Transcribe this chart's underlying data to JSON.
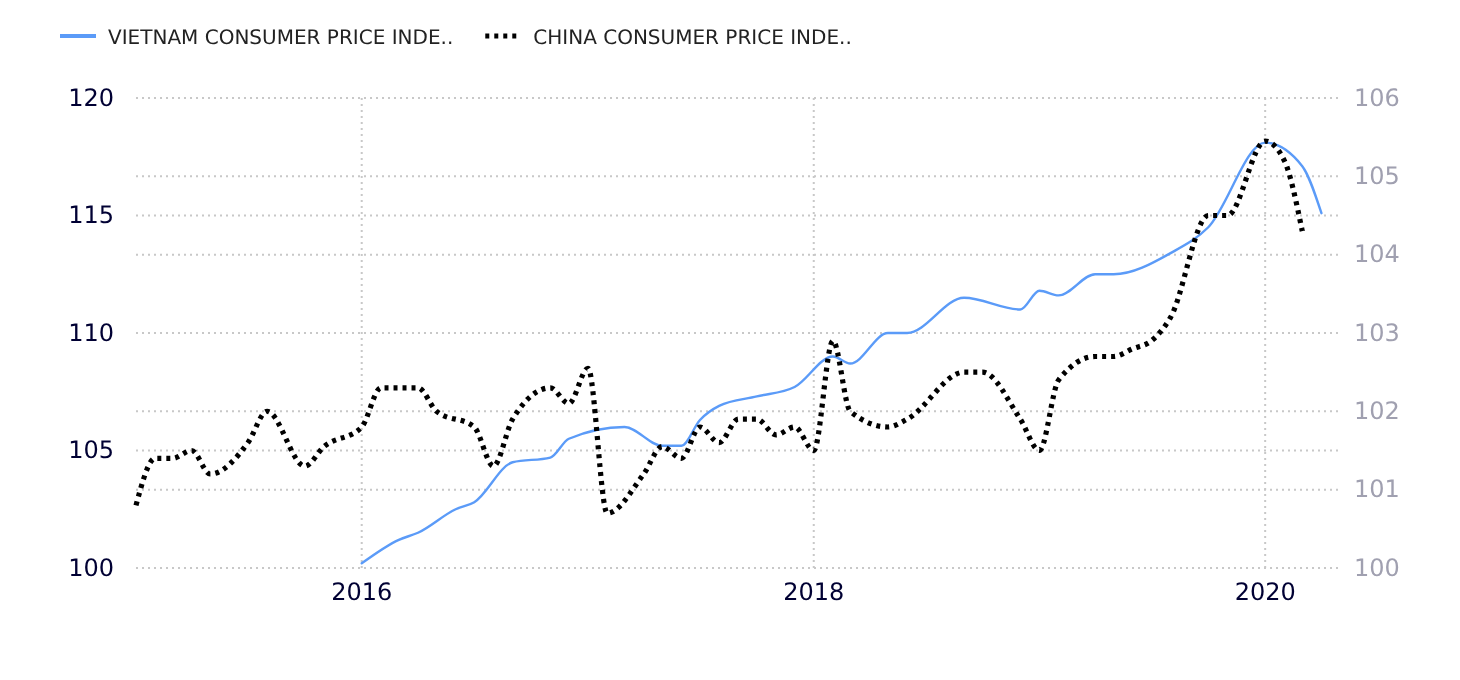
{
  "chart_data": {
    "type": "line",
    "legend": "top left",
    "grid": true,
    "xlim": [
      "2015-01",
      "2020-05"
    ],
    "xticks": [
      "2016",
      "2018",
      "2020"
    ],
    "ylim": [
      100,
      120
    ],
    "yticks": [
      100,
      105,
      110,
      115,
      120
    ],
    "y2lim": [
      100,
      106
    ],
    "y2ticks": [
      100,
      101,
      102,
      103,
      104,
      105,
      106
    ],
    "series": [
      {
        "name": "VIETNAM CONSUMER PRICE INDE..",
        "color": "#5b9bf8",
        "line_style": "solid",
        "axis": "y",
        "x": [
          "2016-01",
          "2016-03",
          "2016-04",
          "2016-06",
          "2016-07",
          "2016-09",
          "2016-11",
          "2016-12",
          "2017-03",
          "2017-05",
          "2017-06",
          "2017-07",
          "2017-08",
          "2017-10",
          "2017-12",
          "2018-02",
          "2018-03",
          "2018-05",
          "2018-06",
          "2018-09",
          "2018-12",
          "2019-01",
          "2019-02",
          "2019-04",
          "2019-05",
          "2019-08",
          "2019-10",
          "2020-01",
          "2020-03",
          "2020-04"
        ],
        "values": [
          100.2,
          101.2,
          101.5,
          102.5,
          102.8,
          104.5,
          104.7,
          105.5,
          106.0,
          105.2,
          105.2,
          106.3,
          106.9,
          107.3,
          107.7,
          109.0,
          108.7,
          110.0,
          110.0,
          111.5,
          111.0,
          111.8,
          111.6,
          112.5,
          112.5,
          113.4,
          114.5,
          118.1,
          117.1,
          115.1
        ]
      },
      {
        "name": "CHINA CONSUMER PRICE INDE..",
        "color": "#000000",
        "line_style": "dotted",
        "axis": "y2",
        "x": [
          "2015-01",
          "2015-02",
          "2015-03",
          "2015-04",
          "2015-05",
          "2015-07",
          "2015-08",
          "2015-10",
          "2015-11",
          "2016-01",
          "2016-02",
          "2016-04",
          "2016-05",
          "2016-07",
          "2016-08",
          "2016-09",
          "2016-11",
          "2016-12",
          "2017-01",
          "2017-02",
          "2017-04",
          "2017-05",
          "2017-06",
          "2017-07",
          "2017-08",
          "2017-09",
          "2017-10",
          "2017-11",
          "2017-12",
          "2018-01",
          "2018-02",
          "2018-03",
          "2018-05",
          "2018-06",
          "2018-09",
          "2018-10",
          "2018-12",
          "2019-01",
          "2019-02",
          "2019-04",
          "2019-05",
          "2019-06",
          "2019-07",
          "2019-08",
          "2019-10",
          "2019-11",
          "2020-01",
          "2020-02",
          "2020-03"
        ],
        "values": [
          100.8,
          101.4,
          101.4,
          101.5,
          101.2,
          101.6,
          102.0,
          101.3,
          101.55,
          101.8,
          102.3,
          102.3,
          102.0,
          101.8,
          101.3,
          101.9,
          102.3,
          102.1,
          102.55,
          100.7,
          101.2,
          101.55,
          101.4,
          101.8,
          101.6,
          101.9,
          101.9,
          101.7,
          101.8,
          101.5,
          102.9,
          102.0,
          101.8,
          101.9,
          102.5,
          102.5,
          101.9,
          101.5,
          102.4,
          102.7,
          102.7,
          102.8,
          102.9,
          103.2,
          104.5,
          104.5,
          105.45,
          105.2,
          104.3
        ]
      }
    ]
  }
}
